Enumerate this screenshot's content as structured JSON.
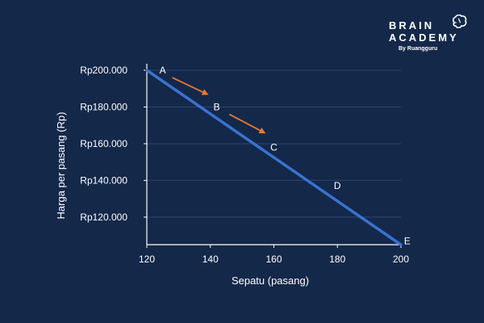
{
  "brand": {
    "line1": "BRAIN",
    "line2": "ACADEMY",
    "sub": "By Ruangguru",
    "logo_icon": "brain-icon"
  },
  "colors": {
    "background": "#14284a",
    "line": "#3a72d0",
    "arrow": "#e8782e",
    "text": "#ffffff",
    "grid": "#2c4470"
  },
  "chart_data": {
    "type": "line",
    "title": "",
    "xlabel": "Sepatu (pasang)",
    "ylabel": "Harga per pasang (Rp)",
    "xlim": [
      120,
      200
    ],
    "ylim": [
      105000,
      200000
    ],
    "x_ticks": [
      120,
      140,
      160,
      180,
      200
    ],
    "x_tick_labels": [
      "120",
      "140",
      "160",
      "180",
      "200"
    ],
    "y_ticks": [
      200000,
      180000,
      160000,
      140000,
      120000
    ],
    "y_tick_labels": [
      "Rp200.000",
      "Rp180.000",
      "Rp160.000",
      "Rp140.000",
      "Rp120.000"
    ],
    "grid": true,
    "series": [
      {
        "x": [
          120,
          200
        ],
        "y": [
          200000,
          105000
        ]
      }
    ],
    "points": [
      {
        "label": "A",
        "x": 125,
        "y": 200000
      },
      {
        "label": "B",
        "x": 142,
        "y": 180000
      },
      {
        "label": "C",
        "x": 160,
        "y": 158000
      },
      {
        "label": "D",
        "x": 180,
        "y": 137000
      },
      {
        "label": "E",
        "x": 202,
        "y": 107000
      }
    ],
    "arrows": [
      {
        "from": [
          128,
          196000
        ],
        "to": [
          139,
          187000
        ]
      },
      {
        "from": [
          146,
          176000
        ],
        "to": [
          157,
          166000
        ]
      }
    ]
  }
}
